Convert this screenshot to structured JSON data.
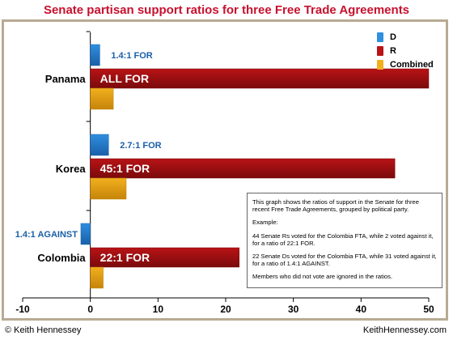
{
  "title": "Senate partisan support ratios for three Free Trade Agreements",
  "footer": {
    "left": "© Keith Hennessey",
    "right": "KeithHennessey.com"
  },
  "legend": [
    {
      "name": "D",
      "color": "#2f8fe0"
    },
    {
      "name": "R",
      "color": "#b81316"
    },
    {
      "name": "Combined",
      "color": "#f2b01e"
    }
  ],
  "note": {
    "p1": "This graph shows the ratios of support in the Senate for three recent Free Trade Agreements, grouped by political party.",
    "p2": "Example:",
    "p3": "44 Senate Rs voted for the Colombia FTA, while 2 voted against it, for a ratio of 22:1 FOR.",
    "p4": "22 Senate Ds voted for the Colombia FTA, while 31 voted against it, for a ratio of 1.4:1 AGAINST.",
    "p5": "Members who did not vote are ignored in the ratios."
  },
  "chart_data": {
    "type": "bar",
    "orientation": "horizontal",
    "categories": [
      "Panama",
      "Korea",
      "Colombia"
    ],
    "series": [
      {
        "name": "D",
        "values": [
          1.4,
          2.7,
          -1.4
        ],
        "labels": [
          "1.4:1 FOR",
          "2.7:1 FOR",
          "1.4:1 AGAINST"
        ]
      },
      {
        "name": "R",
        "values": [
          50,
          45,
          22
        ],
        "labels": [
          "ALL FOR",
          "45:1 FOR",
          "22:1 FOR"
        ]
      },
      {
        "name": "Combined",
        "values": [
          3.4,
          5.3,
          1.9
        ],
        "labels": [
          "",
          "",
          ""
        ]
      }
    ],
    "xlim": [
      -10,
      50
    ],
    "xticks": [
      -10,
      0,
      10,
      20,
      30,
      40,
      50
    ],
    "legend_position": "top-right",
    "grid": false
  }
}
